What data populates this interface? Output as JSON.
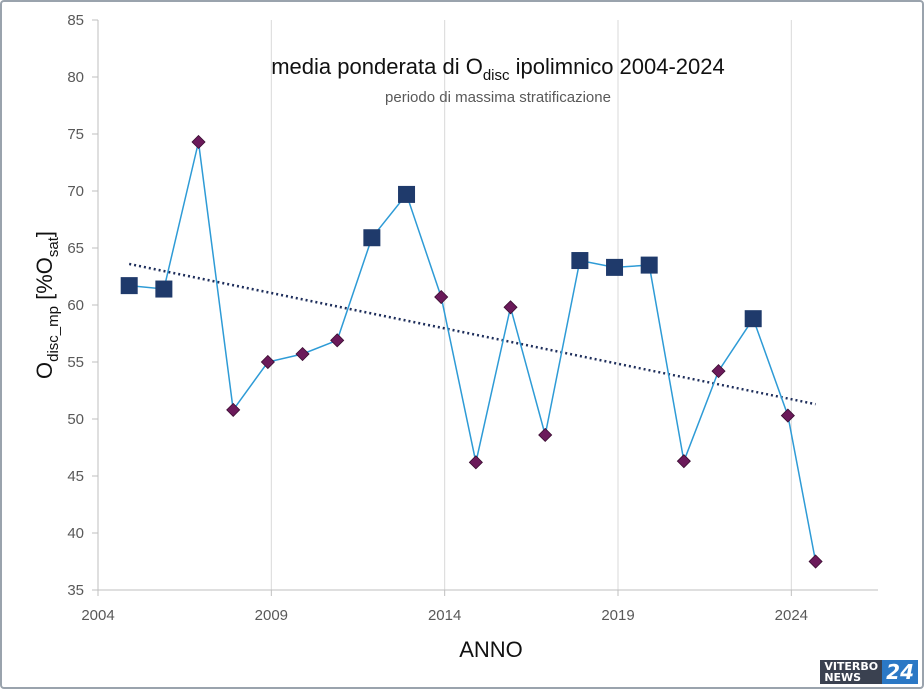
{
  "chart_data": {
    "type": "line",
    "title_main": "media ponderata di O",
    "title_sub": "disc",
    "title_end": " ipolimnico 2004-2024",
    "subtitle": "periodo di massima stratificazione",
    "xlabel": "ANNO",
    "ylabel_main": "O",
    "ylabel_sub1": "disc_mp",
    "ylabel_mid": " [%O",
    "ylabel_sub2": "sat",
    "ylabel_end": "]",
    "xlim": [
      2004,
      2026.5
    ],
    "ylim": [
      35,
      85
    ],
    "x_ticks": [
      "2004",
      "2009",
      "2014",
      "2019",
      "2024"
    ],
    "y_ticks": [
      "35",
      "40",
      "45",
      "50",
      "55",
      "60",
      "65",
      "70",
      "75",
      "80",
      "85"
    ],
    "grid": "vertical",
    "series": [
      {
        "x": [
          2004.9,
          2005.9,
          2006.9,
          2007.9,
          2008.9,
          2009.9,
          2010.9,
          2011.9,
          2012.9,
          2013.9,
          2014.9,
          2015.9,
          2016.9,
          2017.9,
          2018.9,
          2019.9,
          2020.9,
          2021.9,
          2022.9,
          2023.9,
          2024.7
        ],
        "y": [
          61.7,
          61.4,
          74.3,
          50.8,
          55.0,
          55.7,
          56.9,
          65.9,
          69.7,
          60.7,
          46.2,
          59.8,
          48.6,
          63.9,
          63.3,
          63.5,
          46.3,
          54.2,
          58.8,
          50.3,
          37.5
        ],
        "markers": [
          "square",
          "square",
          "diamond",
          "diamond",
          "diamond",
          "diamond",
          "diamond",
          "square",
          "square",
          "diamond",
          "diamond",
          "diamond",
          "diamond",
          "square",
          "square",
          "square",
          "diamond",
          "diamond",
          "square",
          "diamond",
          "diamond"
        ]
      }
    ],
    "trendline": {
      "x": [
        2004.9,
        2024.7
      ],
      "y": [
        63.6,
        51.3
      ]
    },
    "colors": {
      "line": "#2e9bd6",
      "square": "#1f3a6b",
      "diamond": "#6b1a5a",
      "trend": "#1f2f5c",
      "grid": "#d9d9d9"
    }
  },
  "watermark": {
    "line1": "VITERBO",
    "line2": "NEWS",
    "number": "24"
  }
}
